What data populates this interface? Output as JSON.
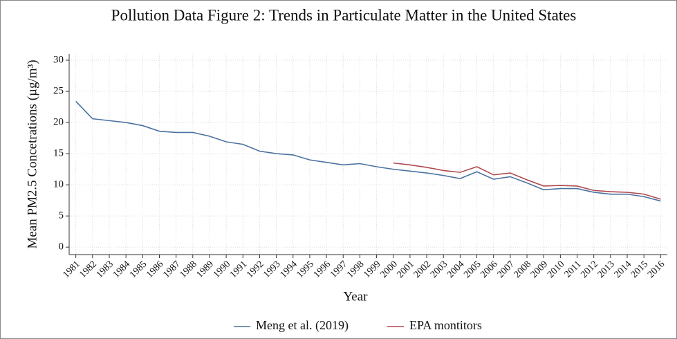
{
  "chart_data": {
    "type": "line",
    "title": "Pollution Data Figure 2: Trends in Particulate Matter in the United States",
    "x_label": "Year",
    "y_label": "Mean PM2.5 Concetrations (µg/m³)",
    "x": [
      1981,
      1982,
      1983,
      1984,
      1985,
      1986,
      1987,
      1988,
      1989,
      1990,
      1991,
      1992,
      1993,
      1994,
      1995,
      1996,
      1997,
      1998,
      1999,
      2000,
      2001,
      2002,
      2003,
      2004,
      2005,
      2006,
      2007,
      2008,
      2009,
      2010,
      2011,
      2012,
      2013,
      2014,
      2015,
      2016
    ],
    "series": [
      {
        "name": "Meng et al. (2019)",
        "color": "#4a72a0",
        "values": [
          23.4,
          20.6,
          20.3,
          20.0,
          19.5,
          18.6,
          18.4,
          18.4,
          17.8,
          16.9,
          16.5,
          15.4,
          15.0,
          14.8,
          14.0,
          13.6,
          13.2,
          13.4,
          12.9,
          12.5,
          12.2,
          11.9,
          11.5,
          11.0,
          12.1,
          10.9,
          11.3,
          10.3,
          9.2,
          9.4,
          9.4,
          8.8,
          8.5,
          8.5,
          8.1,
          7.4
        ]
      },
      {
        "name": "EPA montitors",
        "color": "#b04a4f",
        "values": [
          null,
          null,
          null,
          null,
          null,
          null,
          null,
          null,
          null,
          null,
          null,
          null,
          null,
          null,
          null,
          null,
          null,
          null,
          null,
          13.5,
          13.2,
          12.8,
          12.3,
          12.0,
          12.9,
          11.6,
          11.9,
          10.8,
          9.8,
          9.9,
          9.8,
          9.1,
          8.9,
          8.8,
          8.5,
          7.7
        ]
      }
    ],
    "xlim": [
      1980.6,
      2016.4
    ],
    "xticks": [
      1981,
      1982,
      1983,
      1984,
      1985,
      1986,
      1987,
      1988,
      1989,
      1990,
      1991,
      1992,
      1993,
      1994,
      1995,
      1996,
      1997,
      1998,
      1999,
      2000,
      2001,
      2002,
      2003,
      2004,
      2005,
      2006,
      2007,
      2008,
      2009,
      2010,
      2011,
      2012,
      2013,
      2014,
      2015,
      2016
    ],
    "ylim": [
      -1.2,
      31
    ],
    "yticks": [
      0,
      5,
      10,
      15,
      20,
      25,
      30
    ],
    "grid": true,
    "legend": "bottom"
  }
}
